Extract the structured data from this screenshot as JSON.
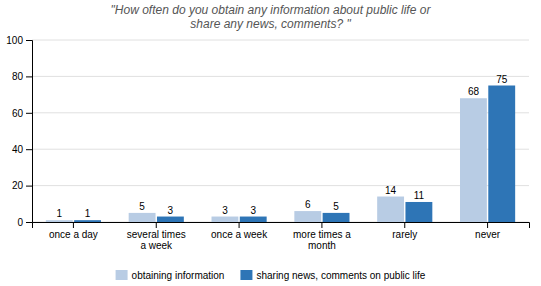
{
  "chart_data": {
    "type": "bar",
    "title": "\"How often do you obtain any information about public life or\nshare any news, comments? \"",
    "categories": [
      "once a day",
      "several times\na week",
      "once a week",
      "more times a\nmonth",
      "rarely",
      "never"
    ],
    "series": [
      {
        "name": "obtaining information",
        "color": "#b8cce4",
        "values": [
          1,
          5,
          3,
          6,
          14,
          68
        ]
      },
      {
        "name": "sharing news, comments on public life",
        "color": "#2e75b6",
        "values": [
          1,
          3,
          3,
          5,
          11,
          75
        ]
      }
    ],
    "ylim": [
      0,
      100
    ],
    "yticks": [
      0,
      20,
      40,
      60,
      80,
      100
    ],
    "grid": true,
    "data_labels": true,
    "legend": "bottom"
  }
}
